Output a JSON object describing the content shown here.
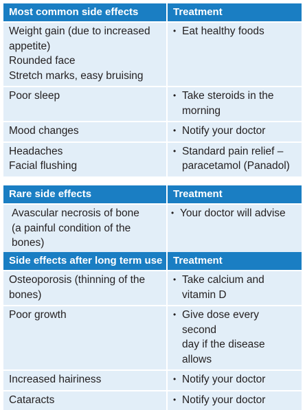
{
  "tables": [
    {
      "header": {
        "col1": "Most common side effects",
        "col2": "Treatment"
      },
      "rows": [
        {
          "effect": [
            "Weight gain (due to increased",
            "appetite)",
            "Rounded face",
            "Stretch marks, easy bruising"
          ],
          "treatment": [
            "Eat healthy foods"
          ]
        },
        {
          "effect": [
            "Poor sleep"
          ],
          "treatment": [
            "Take steroids in the",
            "morning"
          ]
        },
        {
          "effect": [
            "Mood changes"
          ],
          "treatment": [
            "Notify your doctor"
          ]
        },
        {
          "effect": [
            "Headaches",
            "Facial flushing"
          ],
          "treatment": [
            "Standard pain relief –",
            "paracetamol (Panadol)"
          ]
        }
      ]
    },
    {
      "header": {
        "col1": "Rare side effects",
        "col2": "Treatment"
      },
      "rows": [
        {
          "effect": [
            "Avascular necrosis of bone",
            "(a painful condition of the bones)"
          ],
          "treatment": [
            "Your doctor will advise"
          ]
        }
      ]
    },
    {
      "header": {
        "col1": "Side effects after long term use",
        "col2": "Treatment"
      },
      "rows": [
        {
          "effect": [
            "Osteoporosis (thinning of the",
            "bones)"
          ],
          "treatment": [
            "Take calcium and",
            "vitamin D"
          ]
        },
        {
          "effect": [
            "Poor growth"
          ],
          "treatment": [
            "Give dose every second",
            "day if the disease allows"
          ]
        },
        {
          "effect": [
            "Increased hairiness"
          ],
          "treatment": [
            "Notify your doctor"
          ]
        },
        {
          "effect": [
            "Cataracts"
          ],
          "treatment": [
            "Notify your doctor"
          ]
        }
      ]
    }
  ],
  "bullet": "•"
}
